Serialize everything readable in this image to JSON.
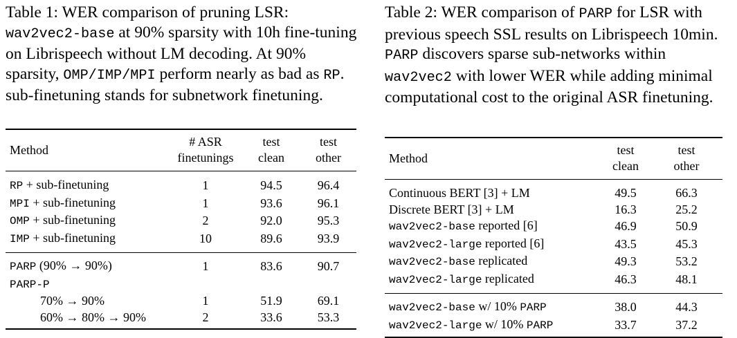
{
  "table1": {
    "caption_segments": [
      {
        "text": "Table 1:  WER comparison of pruning LSR: ",
        "mono": false
      },
      {
        "text": "wav2vec2-base",
        "mono": true
      },
      {
        "text": " at 90% sparsity with 10h fine-tuning on Librispeech without LM decoding.  At 90% sparsity, ",
        "mono": false
      },
      {
        "text": "OMP/IMP/MPI",
        "mono": true
      },
      {
        "text": " perform nearly as bad as ",
        "mono": false
      },
      {
        "text": "RP",
        "mono": true
      },
      {
        "text": ". sub-finetuning stands for subnetwork finetuning.",
        "mono": false
      }
    ],
    "headers": {
      "method": "Method",
      "asr_line1": "# ASR",
      "asr_line2": "finetunings",
      "clean_line1": "test",
      "clean_line2": "clean",
      "other_line1": "test",
      "other_line2": "other"
    },
    "group1": [
      {
        "code": "RP",
        "rest": " + sub-finetuning",
        "asr": "1",
        "clean": "94.5",
        "other": "96.4"
      },
      {
        "code": "MPI",
        "rest": " + sub-finetuning",
        "asr": "1",
        "clean": "93.6",
        "other": "96.1"
      },
      {
        "code": "OMP",
        "rest": " + sub-finetuning",
        "asr": "2",
        "clean": "92.0",
        "other": "95.3"
      },
      {
        "code": "IMP",
        "rest": " + sub-finetuning",
        "asr": "10",
        "clean": "89.6",
        "other": "93.9"
      }
    ],
    "group2": [
      {
        "code": "PARP",
        "rest": " (90% → 90%)",
        "asr": "1",
        "clean": "83.6",
        "other": "90.7",
        "indent": false
      },
      {
        "code": "PARP-P",
        "rest": "",
        "asr": "",
        "clean": "",
        "other": "",
        "indent": false
      },
      {
        "code": "",
        "rest": "70% → 90%",
        "asr": "1",
        "clean": "51.9",
        "other": "69.1",
        "indent": true
      },
      {
        "code": "",
        "rest": "60% → 80% → 90%",
        "asr": "2",
        "clean": "33.6",
        "other": "53.3",
        "indent": true
      }
    ]
  },
  "table2": {
    "caption_segments": [
      {
        "text": "Table 2:  WER comparison of ",
        "mono": false
      },
      {
        "text": "PARP",
        "mono": true
      },
      {
        "text": " for LSR with previous speech SSL results on Librispeech 10min.  ",
        "mono": false
      },
      {
        "text": "PARP",
        "mono": true
      },
      {
        "text": " discovers sparse sub-networks within ",
        "mono": false
      },
      {
        "text": "wav2vec2",
        "mono": true
      },
      {
        "text": " with lower WER while adding minimal computational cost to the original ASR finetuning.",
        "mono": false
      }
    ],
    "headers": {
      "method": "Method",
      "clean_line1": "test",
      "clean_line2": "clean",
      "other_line1": "test",
      "other_line2": "other"
    },
    "group1": [
      {
        "code": "",
        "rest": "Continuous BERT [3] + LM",
        "clean": "49.5",
        "other": "66.3"
      },
      {
        "code": "",
        "rest": "Discrete BERT [3] + LM",
        "clean": "16.3",
        "other": "25.2"
      },
      {
        "code": "wav2vec2-base",
        "rest": " reported [6]",
        "clean": "46.9",
        "other": "50.9"
      },
      {
        "code": "wav2vec2-large",
        "rest": " reported [6]",
        "clean": "43.5",
        "other": "45.3"
      },
      {
        "code": "wav2vec2-base",
        "rest": " replicated",
        "clean": "49.3",
        "other": "53.2"
      },
      {
        "code": "wav2vec2-large",
        "rest": " replicated",
        "clean": "46.3",
        "other": "48.1"
      }
    ],
    "group2": [
      {
        "code": "wav2vec2-base",
        "rest": " w/ 10% ",
        "code2": "PARP",
        "clean": "38.0",
        "other": "44.3"
      },
      {
        "code": "wav2vec2-large",
        "rest": " w/ 10% ",
        "code2": "PARP",
        "clean": "33.7",
        "other": "37.2"
      }
    ]
  }
}
